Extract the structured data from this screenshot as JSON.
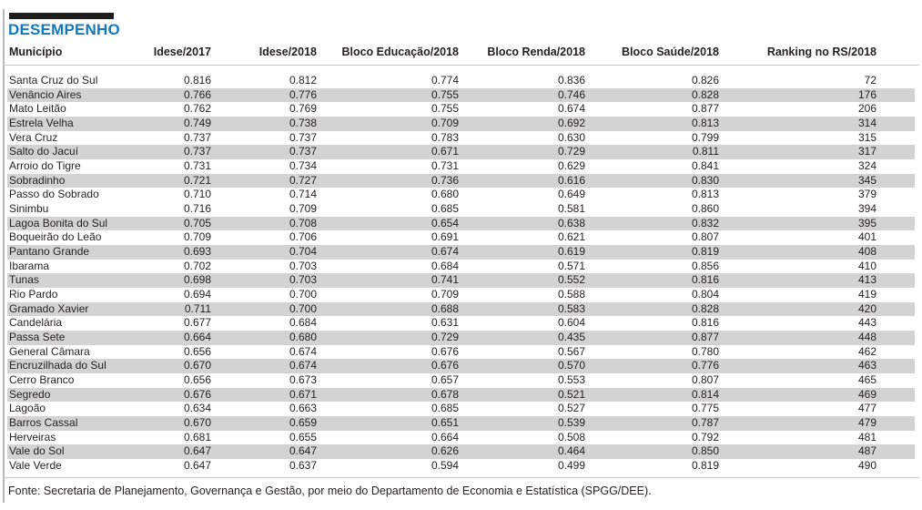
{
  "header": {
    "title": "DESEMPENHO",
    "title_color": "#1478bd",
    "accent_bar_color": "#1d1d1b"
  },
  "table": {
    "stripe_color": "#d3d3d3",
    "columns": [
      "Município",
      "Idese/2017",
      "Idese/2018",
      "Bloco Educação/2018",
      "Bloco Renda/2018",
      "Bloco Saúde/2018",
      "Ranking no RS/2018"
    ],
    "rows": [
      {
        "cells": [
          "Santa Cruz do Sul",
          "0.816",
          "0.812",
          "0.774",
          "0.836",
          "0.826",
          "72"
        ],
        "shaded": false
      },
      {
        "cells": [
          "Venâncio Aires",
          "0.766",
          "0.776",
          "0.755",
          "0.746",
          "0.828",
          "176"
        ],
        "shaded": true
      },
      {
        "cells": [
          "Mato Leitão",
          "0.762",
          "0.769",
          "0.755",
          "0.674",
          "0.877",
          "206"
        ],
        "shaded": false
      },
      {
        "cells": [
          "Estrela Velha",
          "0.749",
          "0.738",
          "0.709",
          "0.692",
          "0.813",
          "314"
        ],
        "shaded": true
      },
      {
        "cells": [
          "Vera Cruz",
          "0.737",
          "0.737",
          "0.783",
          "0.630",
          "0.799",
          "315"
        ],
        "shaded": false
      },
      {
        "cells": [
          "Salto do Jacuí",
          "0.737",
          "0.737",
          "0.671",
          "0.729",
          "0.811",
          "317"
        ],
        "shaded": true
      },
      {
        "cells": [
          "Arroio do Tigre",
          "0.731",
          "0.734",
          "0.731",
          "0.629",
          "0.841",
          "324"
        ],
        "shaded": false
      },
      {
        "cells": [
          "Sobradinho",
          "0.721",
          "0.727",
          "0.736",
          "0.616",
          "0.830",
          "345"
        ],
        "shaded": true
      },
      {
        "cells": [
          "Passo do Sobrado",
          "0.710",
          "0.714",
          "0.680",
          "0.649",
          "0.813",
          "379"
        ],
        "shaded": false
      },
      {
        "cells": [
          "Sinimbu",
          "0.716",
          "0.709",
          "0.685",
          "0.581",
          "0.860",
          "394"
        ],
        "shaded": false
      },
      {
        "cells": [
          "Lagoa Bonita do Sul",
          "0.705",
          "0.708",
          "0.654",
          "0.638",
          "0.832",
          "395"
        ],
        "shaded": true
      },
      {
        "cells": [
          "Boqueirão do Leão",
          "0.709",
          "0.706",
          "0.691",
          "0.621",
          "0.807",
          "401"
        ],
        "shaded": false
      },
      {
        "cells": [
          "Pantano Grande",
          "0.693",
          "0.704",
          "0.674",
          "0.619",
          "0.819",
          "408"
        ],
        "shaded": true
      },
      {
        "cells": [
          "Ibarama",
          "0.702",
          "0.703",
          "0.684",
          "0.571",
          "0.856",
          "410"
        ],
        "shaded": false
      },
      {
        "cells": [
          "Tunas",
          "0.698",
          "0.703",
          "0.741",
          "0.552",
          "0.816",
          "413"
        ],
        "shaded": true
      },
      {
        "cells": [
          "Rio Pardo",
          "0.694",
          "0.700",
          "0.709",
          "0.588",
          "0.804",
          "419"
        ],
        "shaded": false
      },
      {
        "cells": [
          "Gramado Xavier",
          "0.711",
          "0.700",
          "0.688",
          "0.583",
          "0.828",
          "420"
        ],
        "shaded": true
      },
      {
        "cells": [
          "Candelária",
          "0.677",
          "0.684",
          "0.631",
          "0.604",
          "0.816",
          "443"
        ],
        "shaded": false
      },
      {
        "cells": [
          "Passa Sete",
          "0.664",
          "0.680",
          "0.729",
          "0.435",
          "0.877",
          "448"
        ],
        "shaded": true
      },
      {
        "cells": [
          "General Câmara",
          "0.656",
          "0.674",
          "0.676",
          "0.567",
          "0.780",
          "462"
        ],
        "shaded": false
      },
      {
        "cells": [
          "Encruzilhada do Sul",
          "0.670",
          "0.674",
          "0.676",
          "0.570",
          "0.776",
          "463"
        ],
        "shaded": true
      },
      {
        "cells": [
          "Cerro Branco",
          "0.656",
          "0.673",
          "0.657",
          "0.553",
          "0.807",
          "465"
        ],
        "shaded": false
      },
      {
        "cells": [
          "Segredo",
          "0.676",
          "0.671",
          "0.678",
          "0.521",
          "0.814",
          "469"
        ],
        "shaded": true
      },
      {
        "cells": [
          "Lagoão",
          "0.634",
          "0.663",
          "0.685",
          "0.527",
          "0.775",
          "477"
        ],
        "shaded": false
      },
      {
        "cells": [
          "Barros Cassal",
          "0.670",
          "0.659",
          "0.651",
          "0.539",
          "0.787",
          "479"
        ],
        "shaded": true
      },
      {
        "cells": [
          "Herveiras",
          "0.681",
          "0.655",
          "0.664",
          "0.508",
          "0.792",
          "481"
        ],
        "shaded": false
      },
      {
        "cells": [
          "Vale do Sol",
          "0.647",
          "0.647",
          "0.626",
          "0.464",
          "0.850",
          "487"
        ],
        "shaded": true
      },
      {
        "cells": [
          "Vale Verde",
          "0.647",
          "0.637",
          "0.594",
          "0.499",
          "0.819",
          "490"
        ],
        "shaded": false
      }
    ]
  },
  "footer": {
    "source": "Fonte: Secretaria de Planejamento, Governança e Gestão, por meio do Departamento de Economia e Estatística (SPGG/DEE)."
  }
}
